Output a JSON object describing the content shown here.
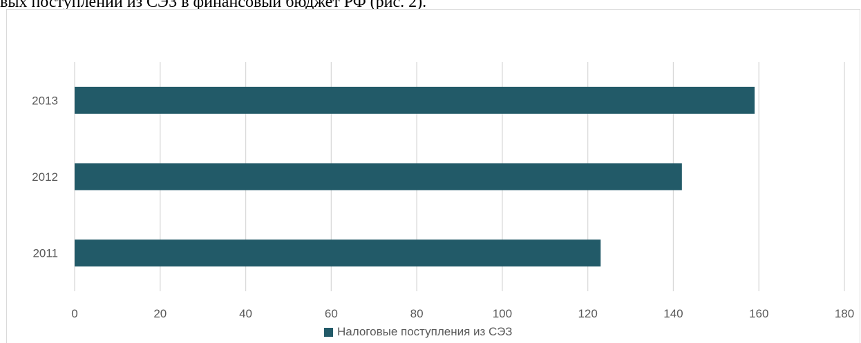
{
  "document": {
    "caption_fragment": "вых поступлений из СЭЗ в финансовый бюджет РФ (рис. 2)."
  },
  "chart_data": {
    "type": "bar",
    "orientation": "horizontal",
    "categories": [
      "2011",
      "2012",
      "2013"
    ],
    "series": [
      {
        "name": "Налоговые поступления из СЭЗ",
        "values": [
          123,
          142,
          159
        ],
        "color": "#225a68"
      }
    ],
    "x_ticks": [
      0,
      20,
      40,
      60,
      80,
      100,
      120,
      140,
      160,
      180
    ],
    "xlim": [
      0,
      180
    ],
    "grid": "vertical",
    "legend_position": "bottom",
    "title": "",
    "xlabel": "",
    "ylabel": ""
  },
  "colors": {
    "grid": "#d9d9d9",
    "text": "#595959",
    "bar": "#225a68"
  }
}
